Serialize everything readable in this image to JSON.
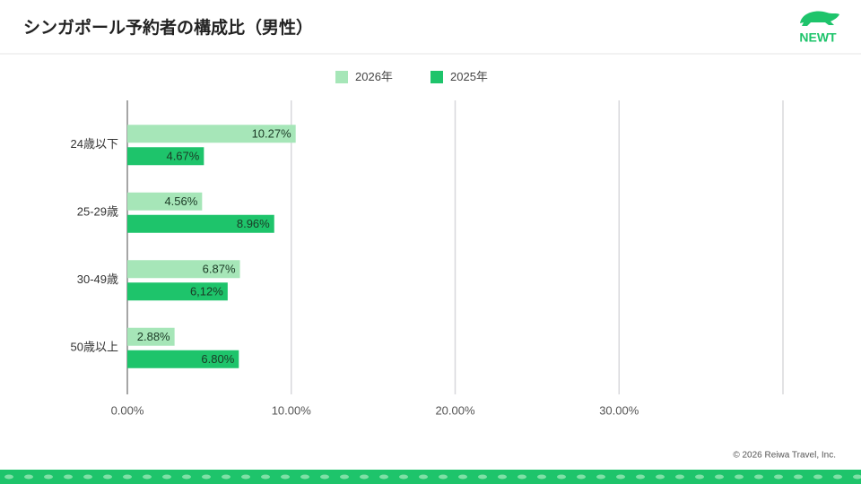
{
  "header": {
    "title": "シンガポール予約者の構成比（男性）",
    "logo": "NEWT"
  },
  "chart_data": {
    "type": "hbar",
    "categories": [
      "24歳以下",
      "25-29歳",
      "30-49歳",
      "50歳以上"
    ],
    "series": [
      {
        "name": "2026年",
        "color": "#a6e6b8",
        "values": [
          10.27,
          4.56,
          6.87,
          2.88
        ],
        "value_labels": [
          "10.27%",
          "4.56%",
          "6.87%",
          "2.88%"
        ]
      },
      {
        "name": "2025年",
        "color": "#1ec46b",
        "values": [
          4.67,
          8.96,
          6.12,
          6.8
        ],
        "value_labels": [
          "4.67%",
          "8.96%",
          "6,12%",
          "6.80%"
        ]
      }
    ],
    "xlim": [
      0,
      40
    ],
    "xticks": [
      {
        "value": 0,
        "label": "0.00%"
      },
      {
        "value": 10,
        "label": "10.00%"
      },
      {
        "value": 20,
        "label": "20.00%"
      },
      {
        "value": 30,
        "label": "30.00%"
      }
    ],
    "grid": true,
    "legend": "top"
  },
  "footer": {
    "copyright": "© 2026 Reiwa Travel, Inc."
  }
}
